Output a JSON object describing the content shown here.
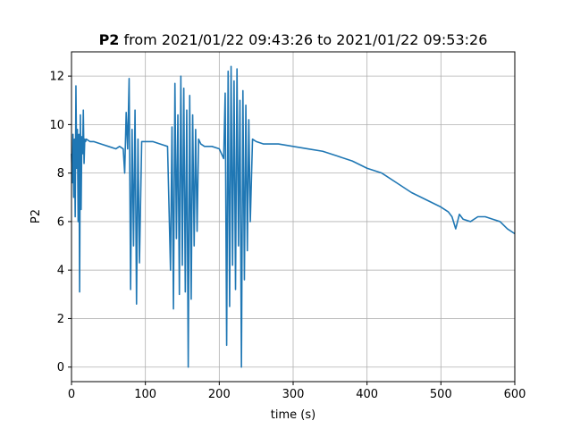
{
  "chart_data": {
    "type": "line",
    "title": {
      "variable": "P2",
      "range_text": " from 2021/01/22 09:43:26 to 2021/01/22 09:53:26"
    },
    "xlabel": "time (s)",
    "ylabel": "P2",
    "xlim": [
      0,
      600
    ],
    "ylim": [
      -0.6,
      13.0
    ],
    "xticks": [
      0,
      100,
      200,
      300,
      400,
      500,
      600
    ],
    "yticks": [
      0,
      2,
      4,
      6,
      8,
      10,
      12
    ],
    "grid": true,
    "legend": "none",
    "series": [
      {
        "color": "#1f77b4",
        "x": [
          0,
          1,
          2,
          3,
          4,
          5,
          6,
          7,
          8,
          9,
          10,
          11,
          12,
          13,
          14,
          15,
          16,
          17,
          18,
          19,
          20,
          25,
          30,
          40,
          50,
          60,
          65,
          70,
          72,
          74,
          76,
          78,
          80,
          82,
          84,
          86,
          88,
          90,
          92,
          95,
          100,
          110,
          120,
          130,
          134,
          136,
          138,
          140,
          142,
          144,
          146,
          148,
          150,
          152,
          154,
          156,
          158,
          160,
          162,
          164,
          166,
          168,
          170,
          172,
          175,
          180,
          190,
          200,
          206,
          208,
          210,
          212,
          214,
          216,
          218,
          220,
          222,
          224,
          226,
          228,
          230,
          232,
          234,
          236,
          238,
          240,
          242,
          245,
          250,
          260,
          280,
          300,
          320,
          340,
          360,
          380,
          400,
          420,
          440,
          460,
          480,
          500,
          510,
          515,
          520,
          525,
          530,
          540,
          550,
          560,
          570,
          580,
          590,
          600
        ],
        "y": [
          8.8,
          7.6,
          9.6,
          7.0,
          9.4,
          6.2,
          11.6,
          8.2,
          9.8,
          6.0,
          9.6,
          3.1,
          10.4,
          6.5,
          9.5,
          8.8,
          10.6,
          8.4,
          9.4,
          9.3,
          9.4,
          9.3,
          9.3,
          9.2,
          9.1,
          9.0,
          9.1,
          9.0,
          8.0,
          10.5,
          9.0,
          11.9,
          3.2,
          9.8,
          5.0,
          10.6,
          2.6,
          9.4,
          4.3,
          9.3,
          9.3,
          9.3,
          9.2,
          9.1,
          4.0,
          9.9,
          2.4,
          11.7,
          5.3,
          10.4,
          3.0,
          12.0,
          4.2,
          11.5,
          3.1,
          10.6,
          0.0,
          11.2,
          2.8,
          10.4,
          5.0,
          9.8,
          5.6,
          9.4,
          9.2,
          9.1,
          9.1,
          9.0,
          8.6,
          11.3,
          0.9,
          12.2,
          2.5,
          12.4,
          4.2,
          11.8,
          3.2,
          12.3,
          5.0,
          11.0,
          0.0,
          11.4,
          3.6,
          10.8,
          4.8,
          10.2,
          6.0,
          9.4,
          9.3,
          9.2,
          9.2,
          9.1,
          9.0,
          8.9,
          8.7,
          8.5,
          8.2,
          8.0,
          7.6,
          7.2,
          6.9,
          6.6,
          6.4,
          6.2,
          5.7,
          6.3,
          6.1,
          6.0,
          6.2,
          6.2,
          6.1,
          6.0,
          5.7,
          5.5
        ]
      }
    ]
  }
}
